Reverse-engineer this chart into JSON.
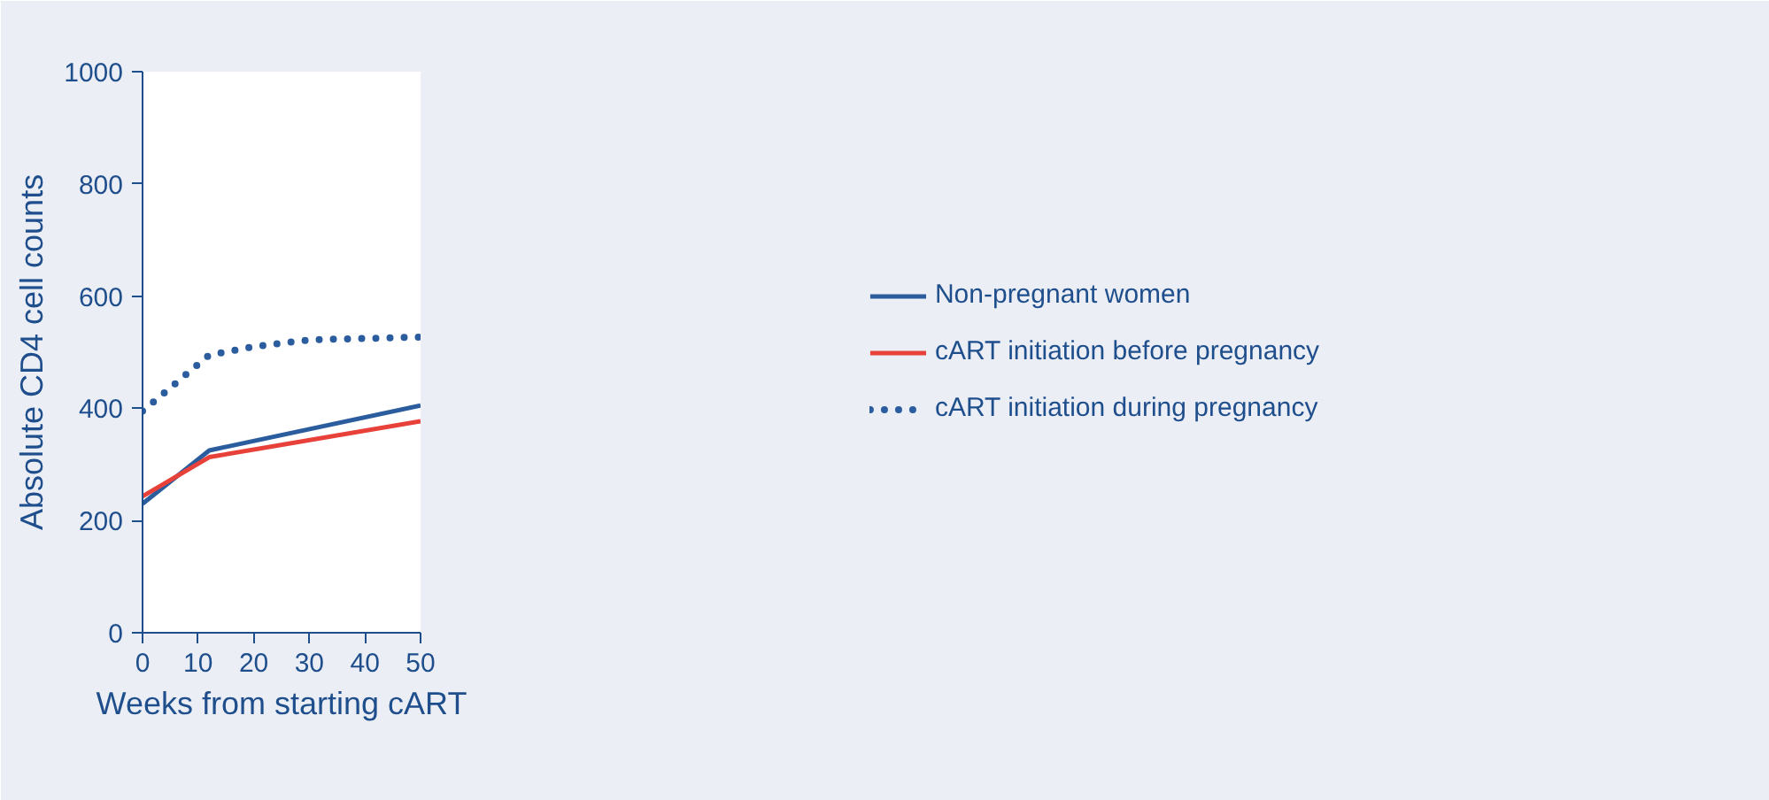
{
  "chart_data": {
    "type": "line",
    "xlabel": "Weeks from starting cART",
    "ylabel": "Absolute CD4 cell counts",
    "xlim": [
      0,
      50
    ],
    "xticks": [
      0,
      10,
      20,
      30,
      40,
      50
    ],
    "ylim": [
      0,
      1000
    ],
    "yticks": [
      0,
      200,
      400,
      600,
      800,
      1000
    ],
    "grid": false,
    "legend": "right",
    "marker": "none",
    "series": [
      {
        "name": "Non-pregnant women",
        "color": "#2b5d9e",
        "x": [
          0,
          12,
          50
        ],
        "values": [
          230,
          325,
          405
        ],
        "line_style": "solid"
      },
      {
        "name": "cART initiation before pregnancy",
        "color": "#e8413a",
        "x": [
          0,
          12,
          50
        ],
        "values": [
          243,
          313,
          377
        ],
        "line_style": "solid"
      },
      {
        "name": "cART initiation during pregnancy",
        "color": "#2b5d9e",
        "x": [
          0,
          12,
          20,
          30,
          50
        ],
        "values": [
          395,
          495,
          510,
          522,
          527
        ],
        "line_style": "dotted"
      }
    ]
  }
}
